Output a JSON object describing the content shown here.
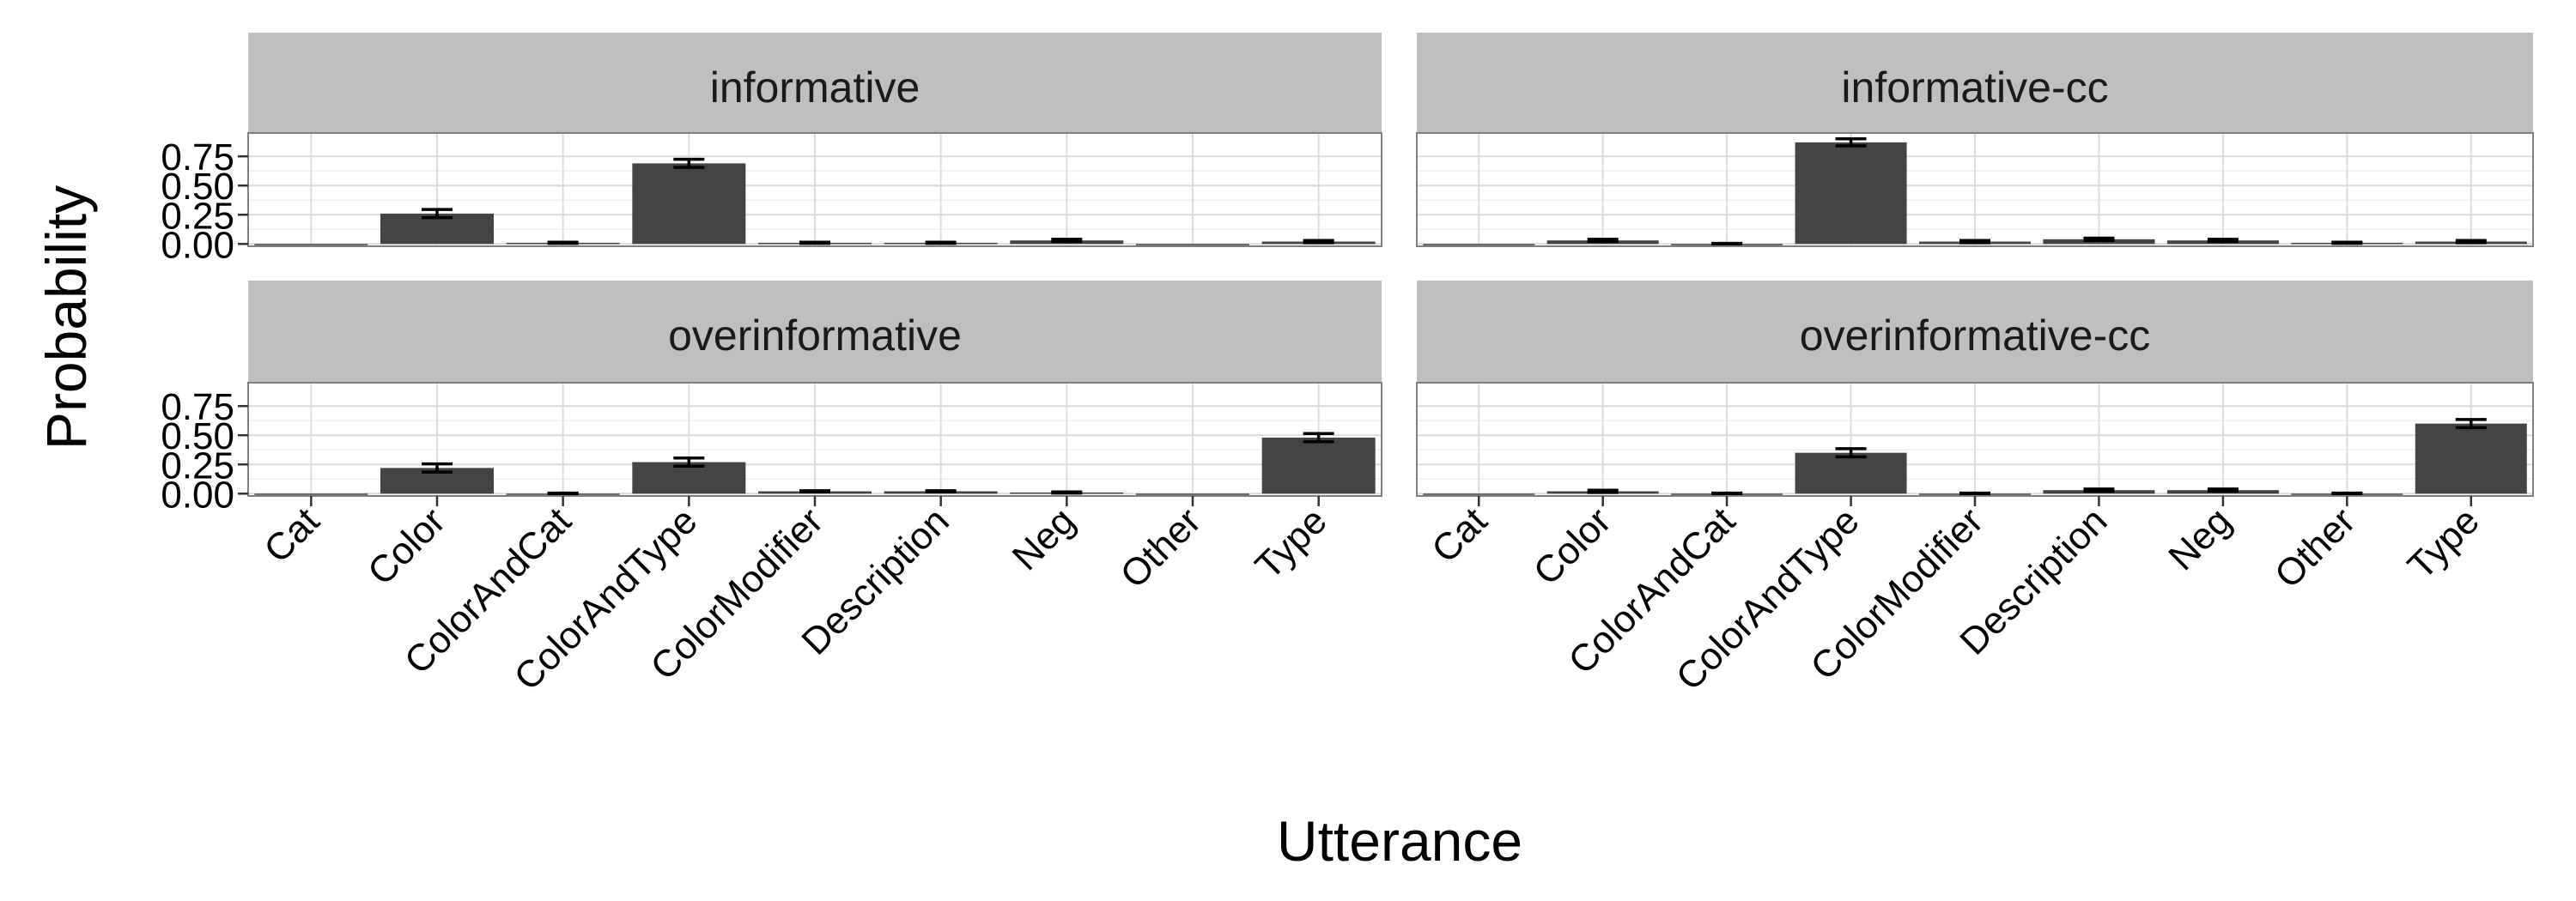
{
  "chart_data": {
    "type": "bar",
    "xlabel": "Utterance",
    "ylabel": "Probability",
    "ylim": [
      -0.02,
      0.95
    ],
    "yticks": [
      "0.00",
      "0.25",
      "0.50",
      "0.75"
    ],
    "ytick_values": [
      0,
      0.25,
      0.5,
      0.75
    ],
    "grid": true,
    "categories": [
      "Cat",
      "Color",
      "ColorAndCat",
      "ColorAndType",
      "ColorModifier",
      "Description",
      "Neg",
      "Other",
      "Type"
    ],
    "facets": [
      {
        "name": "informative",
        "values": [
          0.0,
          0.26,
          0.01,
          0.69,
          0.01,
          0.01,
          0.03,
          0.0,
          0.02
        ],
        "errors": [
          0.0,
          0.035,
          0.005,
          0.035,
          0.005,
          0.005,
          0.01,
          0.0,
          0.01
        ]
      },
      {
        "name": "informative-cc",
        "values": [
          0.0,
          0.03,
          0.0,
          0.87,
          0.02,
          0.04,
          0.03,
          0.01,
          0.02
        ],
        "errors": [
          0.0,
          0.01,
          0.005,
          0.03,
          0.01,
          0.01,
          0.01,
          0.005,
          0.01
        ]
      },
      {
        "name": "overinformative",
        "values": [
          0.0,
          0.22,
          0.0,
          0.27,
          0.02,
          0.02,
          0.01,
          0.0,
          0.48
        ],
        "errors": [
          0.0,
          0.035,
          0.005,
          0.035,
          0.005,
          0.005,
          0.005,
          0.0,
          0.035
        ]
      },
      {
        "name": "overinformative-cc",
        "values": [
          0.0,
          0.02,
          0.0,
          0.35,
          0.0,
          0.03,
          0.03,
          0.0,
          0.6
        ],
        "errors": [
          0.0,
          0.01,
          0.005,
          0.035,
          0.005,
          0.01,
          0.01,
          0.005,
          0.035
        ]
      }
    ],
    "colors": {
      "bar": "#444444",
      "strip": "#bfbfbf",
      "panel_border": "#7f7f7f",
      "grid_major": "#dcdcdc",
      "grid_minor": "#efefef"
    }
  }
}
